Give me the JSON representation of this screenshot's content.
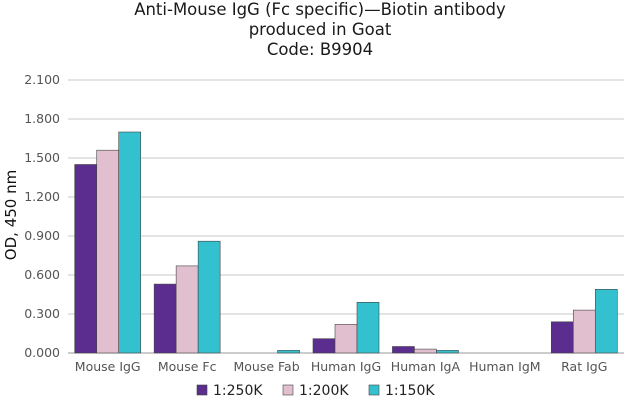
{
  "chart_data": {
    "type": "bar",
    "title": [
      "Anti-Mouse IgG (Fc specific)—Biotin antibody",
      "produced in Goat",
      "Code: B9904"
    ],
    "xlabel": "",
    "ylabel": "OD, 450 nm",
    "ylim": [
      0,
      2.1
    ],
    "yticks": [
      "0.000",
      "0.300",
      "0.600",
      "0.900",
      "1.200",
      "1.500",
      "1.800",
      "2.100"
    ],
    "yticks_values": [
      0,
      0.3,
      0.6,
      0.9,
      1.2,
      1.5,
      1.8,
      2.1
    ],
    "grid": true,
    "legend_position": "bottom",
    "categories": [
      "Mouse IgG",
      "Mouse Fc",
      "Mouse Fab",
      "Human IgG",
      "Human IgA",
      "Human IgM",
      "Rat IgG"
    ],
    "series": [
      {
        "name": "1:250K",
        "color": "#5b2d8e",
        "values": [
          1.45,
          0.53,
          0.0,
          0.11,
          0.05,
          0.0,
          0.24
        ]
      },
      {
        "name": "1:200K",
        "color": "#e2bfcf",
        "values": [
          1.56,
          0.67,
          0.0,
          0.22,
          0.03,
          0.0,
          0.33
        ]
      },
      {
        "name": "1:150K",
        "color": "#33c1cf",
        "values": [
          1.7,
          0.86,
          0.02,
          0.39,
          0.02,
          0.0,
          0.49
        ]
      }
    ]
  }
}
